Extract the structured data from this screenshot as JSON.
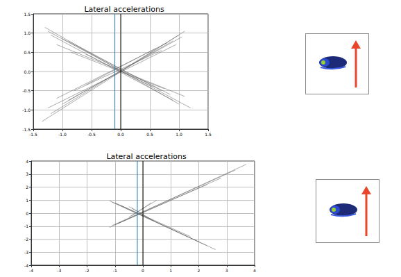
{
  "chart_data": [
    {
      "type": "line",
      "title": "Lateral accelerations",
      "color": "#666666",
      "grid": true,
      "xlim": [
        -1.5,
        1.5
      ],
      "xticks": [
        -1.5,
        {
          "value": -1,
          "label": "-1.0"
        },
        -0.5,
        {
          "value": 0,
          "label": "0.0"
        },
        0.5,
        {
          "value": 1,
          "label": "1.0"
        },
        1.5
      ],
      "ylim": [
        -1.5,
        1.5
      ],
      "yticks": [
        -1.5,
        {
          "value": -1,
          "label": "-1.0"
        },
        -0.5,
        {
          "value": 0,
          "label": "0.0"
        },
        0.5,
        {
          "value": 1,
          "label": "1.0"
        },
        1.5
      ],
      "vertical_lines": [
        {
          "x": -0.1,
          "color": "#1f77b4"
        },
        {
          "x": 0,
          "color": "#000000"
        }
      ],
      "series": [
        {
          "x": [
            -1.35,
            1.1
          ],
          "values": [
            -1.3,
            1.05
          ]
        },
        {
          "x": [
            -1.2,
            1.0
          ],
          "values": [
            -1.1,
            0.95
          ]
        },
        {
          "x": [
            -1.0,
            0.9
          ],
          "values": [
            -0.85,
            0.8
          ]
        },
        {
          "x": [
            -1.1,
            0.8
          ],
          "values": [
            -0.7,
            0.75
          ]
        },
        {
          "x": [
            -0.9,
            1.05
          ],
          "values": [
            -0.75,
            0.9
          ]
        },
        {
          "x": [
            -0.8,
            0.7
          ],
          "values": [
            -0.5,
            0.55
          ]
        },
        {
          "x": [
            -1.25,
            0.95
          ],
          "values": [
            -0.95,
            0.7
          ]
        },
        {
          "x": [
            -0.6,
            0.6
          ],
          "values": [
            -0.35,
            0.6
          ]
        },
        {
          "x": [
            -1.3,
            1.0
          ],
          "values": [
            1.15,
            -0.85
          ]
        },
        {
          "x": [
            -1.2,
            0.9
          ],
          "values": [
            0.95,
            -0.75
          ]
        },
        {
          "x": [
            -1.0,
            0.85
          ],
          "values": [
            0.85,
            -0.6
          ]
        },
        {
          "x": [
            -1.1,
            1.1
          ],
          "values": [
            0.7,
            -0.65
          ]
        },
        {
          "x": [
            -0.9,
            0.7
          ],
          "values": [
            0.8,
            -0.5
          ]
        },
        {
          "x": [
            -0.85,
            0.75
          ],
          "values": [
            0.5,
            -0.45
          ]
        },
        {
          "x": [
            -1.25,
            1.2
          ],
          "values": [
            1.05,
            -0.95
          ]
        },
        {
          "x": [
            -0.6,
            0.55
          ],
          "values": [
            0.45,
            -0.4
          ]
        }
      ]
    },
    {
      "type": "line",
      "title": "Lateral accelerations",
      "color": "#666666",
      "grid": true,
      "xlim": [
        -4,
        4
      ],
      "xticks": [
        -4,
        -3,
        -2,
        -1,
        0,
        1,
        2,
        3,
        4
      ],
      "ylim": [
        -4,
        4
      ],
      "yticks": [
        -4,
        -3,
        -2,
        -1,
        0,
        1,
        2,
        3,
        4
      ],
      "vertical_lines": [
        {
          "x": -0.2,
          "color": "#1f77b4"
        },
        {
          "x": 0,
          "color": "#000000"
        }
      ],
      "series": [
        {
          "x": [
            -1.2,
            3.7
          ],
          "values": [
            -1.1,
            3.75
          ]
        },
        {
          "x": [
            -1.1,
            3.3
          ],
          "values": [
            -0.95,
            3.3
          ]
        },
        {
          "x": [
            -1.0,
            2.8
          ],
          "values": [
            -0.9,
            2.7
          ]
        },
        {
          "x": [
            -0.9,
            2.3
          ],
          "values": [
            -0.8,
            2.2
          ]
        },
        {
          "x": [
            -0.5,
            0.5
          ],
          "values": [
            -0.3,
            1.0
          ]
        },
        {
          "x": [
            -0.4,
            0.3
          ],
          "values": [
            -0.2,
            0.8
          ]
        },
        {
          "x": [
            -1.2,
            2.6
          ],
          "values": [
            0.95,
            -2.8
          ]
        },
        {
          "x": [
            -1.1,
            2.3
          ],
          "values": [
            0.85,
            -2.5
          ]
        },
        {
          "x": [
            -1.0,
            2.0
          ],
          "values": [
            0.8,
            -2.2
          ]
        },
        {
          "x": [
            -0.8,
            1.7
          ],
          "values": [
            0.6,
            -1.8
          ]
        },
        {
          "x": [
            -0.5,
            0.4
          ],
          "values": [
            0.5,
            -0.6
          ]
        },
        {
          "x": [
            -0.4,
            0.3
          ],
          "values": [
            0.4,
            -0.5
          ]
        }
      ]
    }
  ]
}
